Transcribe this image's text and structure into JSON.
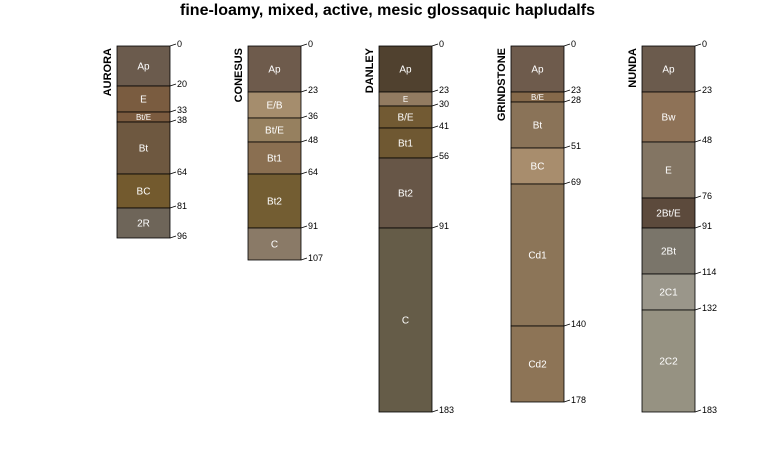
{
  "title": "fine-loamy, mixed, active, mesic glossaquic hapludalfs",
  "chart_data": {
    "type": "soil-profile",
    "title": "fine-loamy, mixed, active, mesic glossaquic hapludalfs",
    "depth_range": [
      0,
      183
    ],
    "profiles": [
      {
        "name": "AURORA",
        "horizons": [
          {
            "name": "Ap",
            "top": 0,
            "bottom": 20,
            "color": "#6b5b4d"
          },
          {
            "name": "E",
            "top": 20,
            "bottom": 33,
            "color": "#7a5c40"
          },
          {
            "name": "Bt/E",
            "top": 33,
            "bottom": 38,
            "color": "#7b5b3f"
          },
          {
            "name": "Bt",
            "top": 38,
            "bottom": 64,
            "color": "#6e5840"
          },
          {
            "name": "BC",
            "top": 64,
            "bottom": 81,
            "color": "#735a2e"
          },
          {
            "name": "2R",
            "top": 81,
            "bottom": 96,
            "color": "#6e6559"
          }
        ]
      },
      {
        "name": "CONESUS",
        "horizons": [
          {
            "name": "Ap",
            "top": 0,
            "bottom": 23,
            "color": "#6e5b4c"
          },
          {
            "name": "E/B",
            "top": 23,
            "bottom": 36,
            "color": "#a58d6d"
          },
          {
            "name": "Bt/E",
            "top": 36,
            "bottom": 48,
            "color": "#96805f"
          },
          {
            "name": "Bt1",
            "top": 48,
            "bottom": 64,
            "color": "#8a6f51"
          },
          {
            "name": "Bt2",
            "top": 64,
            "bottom": 91,
            "color": "#735d32"
          },
          {
            "name": "C",
            "top": 91,
            "bottom": 107,
            "color": "#8a7a67"
          }
        ]
      },
      {
        "name": "DANLEY",
        "horizons": [
          {
            "name": "Ap",
            "top": 0,
            "bottom": 23,
            "color": "#50412f"
          },
          {
            "name": "E",
            "top": 23,
            "bottom": 30,
            "color": "#927b61"
          },
          {
            "name": "B/E",
            "top": 30,
            "bottom": 41,
            "color": "#725a33"
          },
          {
            "name": "Bt1",
            "top": 41,
            "bottom": 56,
            "color": "#6f5832"
          },
          {
            "name": "Bt2",
            "top": 56,
            "bottom": 91,
            "color": "#675647"
          },
          {
            "name": "C",
            "top": 91,
            "bottom": 183,
            "color": "#655c48"
          }
        ]
      },
      {
        "name": "GRINDSTONE",
        "horizons": [
          {
            "name": "Ap",
            "top": 0,
            "bottom": 23,
            "color": "#6e5b4c"
          },
          {
            "name": "B/E",
            "top": 23,
            "bottom": 28,
            "color": "#85694a"
          },
          {
            "name": "Bt",
            "top": 28,
            "bottom": 51,
            "color": "#8a7358"
          },
          {
            "name": "BC",
            "top": 51,
            "bottom": 69,
            "color": "#a88d6d"
          },
          {
            "name": "Cd1",
            "top": 69,
            "bottom": 140,
            "color": "#8c7558"
          },
          {
            "name": "Cd2",
            "top": 140,
            "bottom": 178,
            "color": "#8d7456"
          }
        ]
      },
      {
        "name": "NUNDA",
        "horizons": [
          {
            "name": "Ap",
            "top": 0,
            "bottom": 23,
            "color": "#6b5b4d"
          },
          {
            "name": "Bw",
            "top": 23,
            "bottom": 48,
            "color": "#8e7257"
          },
          {
            "name": "E",
            "top": 48,
            "bottom": 76,
            "color": "#837563"
          },
          {
            "name": "2Bt/E",
            "top": 76,
            "bottom": 91,
            "color": "#5c4a3c"
          },
          {
            "name": "2Bt",
            "top": 91,
            "bottom": 114,
            "color": "#7a756a"
          },
          {
            "name": "2C1",
            "top": 114,
            "bottom": 132,
            "color": "#9a968a"
          },
          {
            "name": "2C2",
            "top": 132,
            "bottom": 183,
            "color": "#969282"
          }
        ]
      }
    ]
  }
}
